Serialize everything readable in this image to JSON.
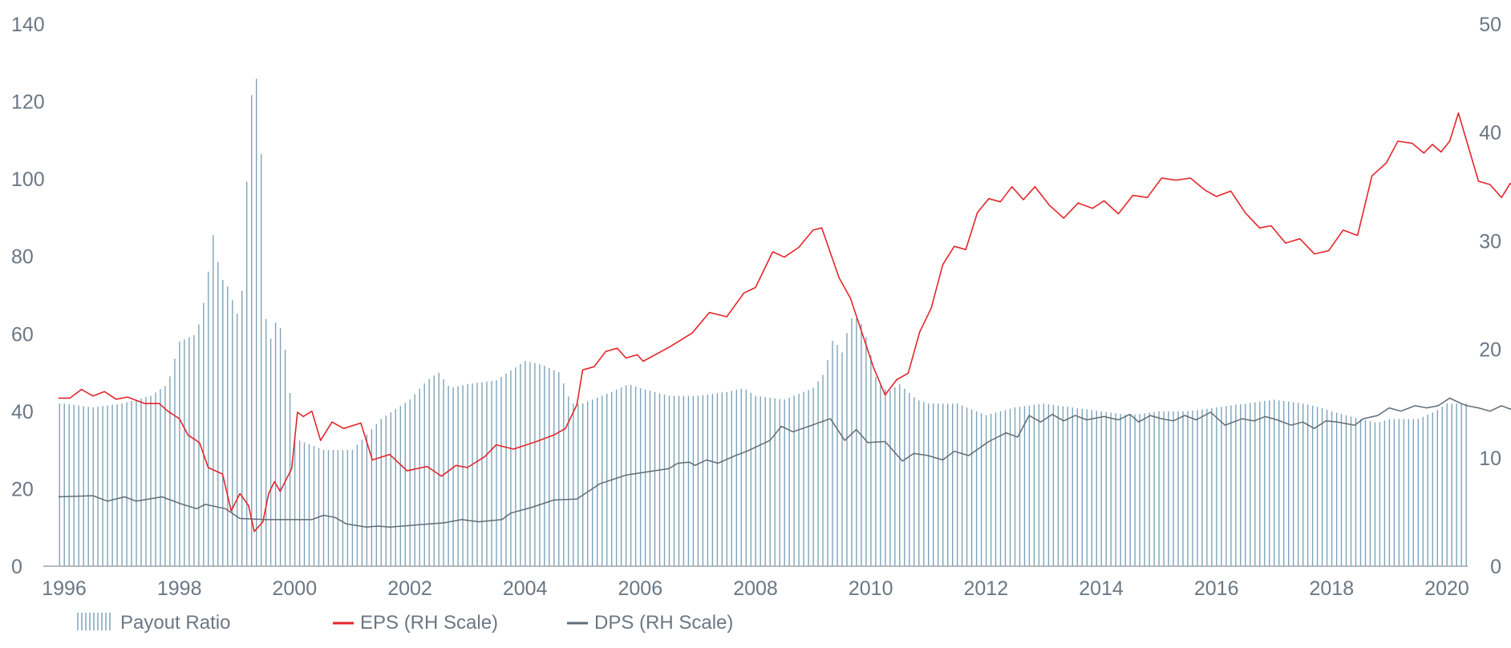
{
  "chart_data": {
    "type": "bar",
    "title": "",
    "xlabel": "",
    "ylabel": "",
    "x_ticks": [
      "1996",
      "1998",
      "2000",
      "2002",
      "2004",
      "2006",
      "2008",
      "2010",
      "2012",
      "2014",
      "2016",
      "2018",
      "2020"
    ],
    "x_range": [
      1995.85,
      2020.4
    ],
    "y_left_ticks": [
      "0",
      "20",
      "40",
      "60",
      "80",
      "100",
      "120",
      "140"
    ],
    "y_left_range": [
      0,
      140
    ],
    "y_right_ticks": [
      "0",
      "10",
      "20",
      "30",
      "40",
      "50"
    ],
    "y_right_range": [
      0,
      50
    ],
    "grid": false,
    "legend_position": "bottom-left",
    "legend": [
      {
        "label": "Payout Ratio",
        "color": "#7fa3b8",
        "kind": "bars"
      },
      {
        "label": "EPS (RH Scale)",
        "color": "#e3262b",
        "kind": "line"
      },
      {
        "label": "DPS (RH Scale)",
        "color": "#5f6c76",
        "kind": "line"
      }
    ],
    "series": [
      {
        "name": "Payout Ratio",
        "axis": "left",
        "type": "bar",
        "color": "#7fa3b8",
        "points": [
          [
            1996.0,
            42
          ],
          [
            1996.5,
            41
          ],
          [
            1997.0,
            42
          ],
          [
            1997.5,
            44
          ],
          [
            1997.8,
            47
          ],
          [
            1998.0,
            58
          ],
          [
            1998.3,
            60
          ],
          [
            1998.45,
            70
          ],
          [
            1998.6,
            87
          ],
          [
            1998.7,
            75
          ],
          [
            1998.85,
            72
          ],
          [
            1999.0,
            65
          ],
          [
            1999.1,
            72
          ],
          [
            1999.2,
            111
          ],
          [
            1999.3,
            131
          ],
          [
            1999.4,
            117
          ],
          [
            1999.5,
            64
          ],
          [
            1999.6,
            58
          ],
          [
            1999.7,
            65
          ],
          [
            1999.85,
            55
          ],
          [
            2000.0,
            33
          ],
          [
            2000.5,
            30
          ],
          [
            2001.0,
            30
          ],
          [
            2001.5,
            38
          ],
          [
            2002.0,
            43
          ],
          [
            2002.3,
            48
          ],
          [
            2002.5,
            50
          ],
          [
            2002.7,
            46
          ],
          [
            2003.0,
            47
          ],
          [
            2003.5,
            48
          ],
          [
            2004.0,
            53
          ],
          [
            2004.3,
            52
          ],
          [
            2004.6,
            50
          ],
          [
            2004.8,
            42
          ],
          [
            2005.0,
            42
          ],
          [
            2005.5,
            45
          ],
          [
            2005.8,
            47
          ],
          [
            2006.0,
            46
          ],
          [
            2006.5,
            44
          ],
          [
            2007.0,
            44
          ],
          [
            2007.5,
            45
          ],
          [
            2007.8,
            46
          ],
          [
            2008.0,
            44
          ],
          [
            2008.5,
            43
          ],
          [
            2009.0,
            46
          ],
          [
            2009.2,
            50
          ],
          [
            2009.35,
            59
          ],
          [
            2009.5,
            55
          ],
          [
            2009.65,
            64
          ],
          [
            2009.8,
            64
          ],
          [
            2009.95,
            58
          ],
          [
            2010.1,
            48
          ],
          [
            2010.3,
            45
          ],
          [
            2010.5,
            47
          ],
          [
            2010.8,
            43
          ],
          [
            2011.0,
            42
          ],
          [
            2011.5,
            42
          ],
          [
            2012.0,
            39
          ],
          [
            2012.5,
            41
          ],
          [
            2013.0,
            42
          ],
          [
            2013.5,
            41
          ],
          [
            2014.0,
            40
          ],
          [
            2014.5,
            39
          ],
          [
            2015.0,
            40
          ],
          [
            2015.5,
            40
          ],
          [
            2016.0,
            41
          ],
          [
            2016.5,
            42
          ],
          [
            2017.0,
            43
          ],
          [
            2017.5,
            42
          ],
          [
            2017.8,
            41
          ],
          [
            2018.0,
            40
          ],
          [
            2018.5,
            38
          ],
          [
            2018.8,
            37
          ],
          [
            2019.0,
            38
          ],
          [
            2019.5,
            38
          ],
          [
            2019.8,
            40
          ],
          [
            2020.0,
            42
          ],
          [
            2020.3,
            42
          ]
        ]
      },
      {
        "name": "EPS (RH Scale)",
        "axis": "right",
        "type": "line",
        "color": "#e3262b",
        "points": [
          [
            1995.9,
            15.5
          ],
          [
            1996.1,
            15.5
          ],
          [
            1996.3,
            16.3
          ],
          [
            1996.5,
            15.7
          ],
          [
            1996.7,
            16.1
          ],
          [
            1996.9,
            15.4
          ],
          [
            1997.1,
            15.6
          ],
          [
            1997.4,
            15.0
          ],
          [
            1997.65,
            15.0
          ],
          [
            1997.8,
            14.3
          ],
          [
            1998.0,
            13.6
          ],
          [
            1998.15,
            12.1
          ],
          [
            1998.35,
            11.4
          ],
          [
            1998.5,
            9.1
          ],
          [
            1998.75,
            8.5
          ],
          [
            1998.9,
            5.1
          ],
          [
            1999.05,
            6.7
          ],
          [
            1999.2,
            5.6
          ],
          [
            1999.3,
            3.2
          ],
          [
            1999.45,
            4.1
          ],
          [
            1999.55,
            6.7
          ],
          [
            1999.65,
            7.8
          ],
          [
            1999.75,
            6.9
          ],
          [
            1999.95,
            9.0
          ],
          [
            2000.05,
            14.2
          ],
          [
            2000.15,
            13.8
          ],
          [
            2000.3,
            14.3
          ],
          [
            2000.45,
            11.6
          ],
          [
            2000.65,
            13.3
          ],
          [
            2000.85,
            12.7
          ],
          [
            2001.15,
            13.2
          ],
          [
            2001.35,
            9.8
          ],
          [
            2001.65,
            10.3
          ],
          [
            2001.95,
            8.8
          ],
          [
            2002.3,
            9.2
          ],
          [
            2002.55,
            8.3
          ],
          [
            2002.8,
            9.3
          ],
          [
            2003.0,
            9.1
          ],
          [
            2003.3,
            10.1
          ],
          [
            2003.5,
            11.2
          ],
          [
            2003.8,
            10.8
          ],
          [
            2004.2,
            11.5
          ],
          [
            2004.5,
            12.1
          ],
          [
            2004.7,
            12.7
          ],
          [
            2004.9,
            14.9
          ],
          [
            2005.0,
            18.1
          ],
          [
            2005.2,
            18.4
          ],
          [
            2005.4,
            19.8
          ],
          [
            2005.6,
            20.1
          ],
          [
            2005.75,
            19.2
          ],
          [
            2005.95,
            19.5
          ],
          [
            2006.05,
            18.9
          ],
          [
            2006.5,
            20.2
          ],
          [
            2006.9,
            21.5
          ],
          [
            2007.2,
            23.4
          ],
          [
            2007.5,
            23.0
          ],
          [
            2007.8,
            25.2
          ],
          [
            2008.0,
            25.7
          ],
          [
            2008.3,
            29.0
          ],
          [
            2008.5,
            28.5
          ],
          [
            2008.75,
            29.4
          ],
          [
            2009.0,
            31.0
          ],
          [
            2009.15,
            31.2
          ],
          [
            2009.45,
            26.6
          ],
          [
            2009.65,
            24.7
          ],
          [
            2010.05,
            18.3
          ],
          [
            2010.25,
            15.8
          ],
          [
            2010.45,
            17.2
          ],
          [
            2010.65,
            17.8
          ],
          [
            2010.85,
            21.6
          ],
          [
            2011.05,
            23.8
          ],
          [
            2011.25,
            27.8
          ],
          [
            2011.45,
            29.5
          ],
          [
            2011.65,
            29.2
          ],
          [
            2011.85,
            32.6
          ],
          [
            2012.05,
            33.9
          ],
          [
            2012.25,
            33.6
          ],
          [
            2012.45,
            35.0
          ],
          [
            2012.65,
            33.8
          ],
          [
            2012.85,
            35.0
          ],
          [
            2013.1,
            33.3
          ],
          [
            2013.35,
            32.1
          ],
          [
            2013.6,
            33.5
          ],
          [
            2013.85,
            33.0
          ],
          [
            2014.05,
            33.7
          ],
          [
            2014.3,
            32.5
          ],
          [
            2014.55,
            34.2
          ],
          [
            2014.8,
            34.0
          ],
          [
            2015.05,
            35.8
          ],
          [
            2015.3,
            35.6
          ],
          [
            2015.55,
            35.8
          ],
          [
            2015.8,
            34.7
          ],
          [
            2016.0,
            34.1
          ],
          [
            2016.25,
            34.6
          ],
          [
            2016.5,
            32.6
          ],
          [
            2016.75,
            31.2
          ],
          [
            2016.95,
            31.4
          ],
          [
            2017.2,
            29.8
          ],
          [
            2017.45,
            30.2
          ],
          [
            2017.7,
            28.8
          ],
          [
            2017.95,
            29.1
          ],
          [
            2018.2,
            31.0
          ],
          [
            2018.45,
            30.5
          ],
          [
            2018.7,
            36.0
          ],
          [
            2018.95,
            37.2
          ],
          [
            2019.15,
            39.2
          ],
          [
            2019.4,
            39.0
          ],
          [
            2019.6,
            38.1
          ],
          [
            2019.75,
            38.9
          ],
          [
            2019.9,
            38.2
          ],
          [
            2020.05,
            39.2
          ],
          [
            2020.2,
            41.8
          ],
          [
            2020.55,
            35.5
          ],
          [
            2020.75,
            35.2
          ],
          [
            2020.95,
            34.0
          ],
          [
            2021.1,
            35.3
          ],
          [
            2021.3,
            34.4
          ]
        ]
      },
      {
        "name": "DPS (RH Scale)",
        "axis": "right",
        "type": "line",
        "color": "#5f6c76",
        "points": [
          [
            1995.9,
            6.4
          ],
          [
            1996.5,
            6.5
          ],
          [
            1996.75,
            6.0
          ],
          [
            1997.05,
            6.4
          ],
          [
            1997.25,
            6.0
          ],
          [
            1997.7,
            6.4
          ],
          [
            1998.0,
            5.8
          ],
          [
            1998.3,
            5.3
          ],
          [
            1998.45,
            5.7
          ],
          [
            1998.8,
            5.3
          ],
          [
            1999.05,
            4.4
          ],
          [
            1999.5,
            4.3
          ],
          [
            2000.3,
            4.3
          ],
          [
            2000.5,
            4.7
          ],
          [
            2000.7,
            4.5
          ],
          [
            2000.9,
            3.9
          ],
          [
            2001.25,
            3.6
          ],
          [
            2001.45,
            3.7
          ],
          [
            2001.65,
            3.6
          ],
          [
            2002.1,
            3.8
          ],
          [
            2002.6,
            4.0
          ],
          [
            2002.9,
            4.3
          ],
          [
            2003.2,
            4.1
          ],
          [
            2003.6,
            4.3
          ],
          [
            2003.75,
            4.9
          ],
          [
            2004.1,
            5.4
          ],
          [
            2004.5,
            6.1
          ],
          [
            2004.9,
            6.2
          ],
          [
            2005.3,
            7.6
          ],
          [
            2005.75,
            8.4
          ],
          [
            2006.5,
            9.0
          ],
          [
            2006.65,
            9.5
          ],
          [
            2006.85,
            9.6
          ],
          [
            2006.95,
            9.3
          ],
          [
            2007.15,
            9.8
          ],
          [
            2007.35,
            9.5
          ],
          [
            2007.65,
            10.2
          ],
          [
            2007.85,
            10.6
          ],
          [
            2008.25,
            11.6
          ],
          [
            2008.45,
            12.9
          ],
          [
            2008.65,
            12.4
          ],
          [
            2009.3,
            13.6
          ],
          [
            2009.55,
            11.6
          ],
          [
            2009.75,
            12.6
          ],
          [
            2009.95,
            11.4
          ],
          [
            2010.25,
            11.5
          ],
          [
            2010.55,
            9.7
          ],
          [
            2010.75,
            10.4
          ],
          [
            2011.0,
            10.2
          ],
          [
            2011.25,
            9.8
          ],
          [
            2011.45,
            10.6
          ],
          [
            2011.7,
            10.2
          ],
          [
            2012.05,
            11.5
          ],
          [
            2012.35,
            12.3
          ],
          [
            2012.55,
            11.9
          ],
          [
            2012.75,
            13.9
          ],
          [
            2012.95,
            13.3
          ],
          [
            2013.15,
            14.0
          ],
          [
            2013.35,
            13.4
          ],
          [
            2013.55,
            13.9
          ],
          [
            2013.75,
            13.5
          ],
          [
            2014.05,
            13.8
          ],
          [
            2014.3,
            13.5
          ],
          [
            2014.5,
            14.0
          ],
          [
            2014.65,
            13.3
          ],
          [
            2014.85,
            13.9
          ],
          [
            2015.05,
            13.6
          ],
          [
            2015.25,
            13.4
          ],
          [
            2015.45,
            13.9
          ],
          [
            2015.65,
            13.5
          ],
          [
            2015.9,
            14.2
          ],
          [
            2016.15,
            13.0
          ],
          [
            2016.45,
            13.6
          ],
          [
            2016.65,
            13.4
          ],
          [
            2016.85,
            13.8
          ],
          [
            2017.05,
            13.5
          ],
          [
            2017.3,
            13.0
          ],
          [
            2017.5,
            13.3
          ],
          [
            2017.7,
            12.7
          ],
          [
            2017.9,
            13.4
          ],
          [
            2018.1,
            13.3
          ],
          [
            2018.4,
            13.0
          ],
          [
            2018.55,
            13.6
          ],
          [
            2018.8,
            13.9
          ],
          [
            2019.0,
            14.6
          ],
          [
            2019.2,
            14.3
          ],
          [
            2019.45,
            14.8
          ],
          [
            2019.65,
            14.6
          ],
          [
            2019.85,
            14.8
          ],
          [
            2020.05,
            15.5
          ],
          [
            2020.25,
            15.0
          ],
          [
            2020.35,
            14.8
          ],
          [
            2020.55,
            14.6
          ],
          [
            2020.75,
            14.3
          ],
          [
            2020.95,
            14.8
          ],
          [
            2021.1,
            14.5
          ],
          [
            2021.3,
            14.5
          ]
        ]
      }
    ]
  }
}
